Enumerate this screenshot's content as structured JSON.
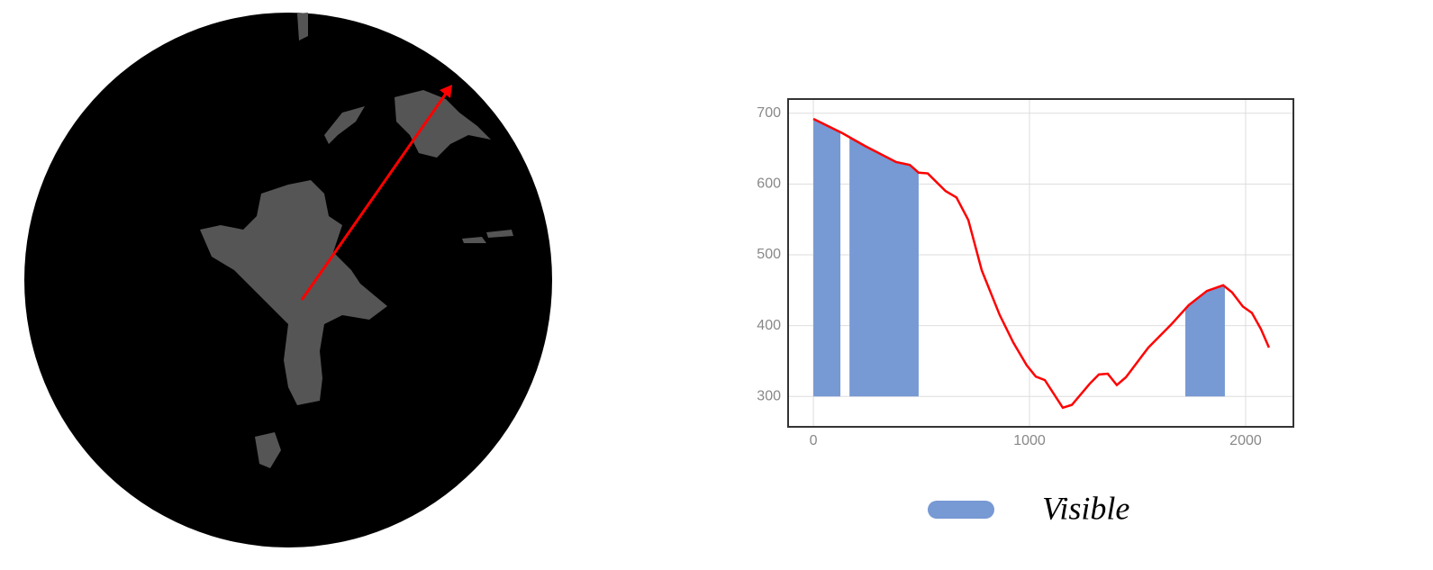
{
  "chart_data": {
    "type": "line",
    "x": [
      0,
      133,
      237,
      383,
      446,
      487,
      529,
      612,
      662,
      717,
      779,
      862,
      925,
      987,
      1029,
      1071,
      1154,
      1196,
      1279,
      1321,
      1362,
      1404,
      1446,
      1550,
      1654,
      1737,
      1821,
      1896,
      1937,
      1987,
      2029,
      2071,
      2108
    ],
    "values": [
      692,
      672,
      654,
      631,
      627,
      616,
      615,
      590,
      581,
      549,
      478,
      415,
      376,
      344,
      328,
      323,
      284,
      288,
      318,
      331,
      332,
      316,
      327,
      369,
      401,
      429,
      449,
      457,
      447,
      427,
      418,
      395,
      369
    ],
    "color": "#ff0000",
    "areas": {
      "name": "Visible",
      "color": "#7799d4",
      "base": 300,
      "ranges": [
        [
          0,
          125
        ],
        [
          167,
          487
        ],
        [
          1721,
          1904
        ]
      ]
    },
    "xlim": [
      -117,
      2221
    ],
    "ylim": [
      257,
      720
    ],
    "xticks": [
      0,
      1000,
      2000
    ],
    "yticks": [
      300,
      400,
      500,
      600,
      700
    ],
    "grid": true
  }
}
